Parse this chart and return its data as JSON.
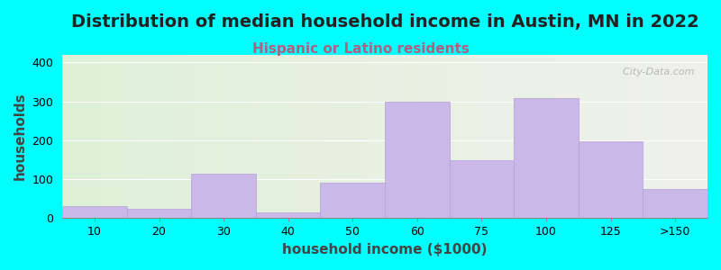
{
  "title": "Distribution of median household income in Austin, MN in 2022",
  "subtitle": "Hispanic or Latino residents",
  "xlabel": "household income ($1000)",
  "ylabel": "households",
  "background_color": "#00FFFF",
  "plot_bg_color_left": "#dff0d8",
  "plot_bg_color_right": "#f0f0ec",
  "bar_color": "#c9b8e8",
  "bar_edge_color": "#b8a8d8",
  "bin_labels": [
    "10",
    "20",
    "30",
    "40",
    "50",
    "60",
    "75",
    "100",
    "125",
    ">150"
  ],
  "values": [
    30,
    25,
    115,
    15,
    90,
    300,
    148,
    308,
    198,
    75
  ],
  "ylim": [
    0,
    420
  ],
  "yticks": [
    0,
    100,
    200,
    300,
    400
  ],
  "watermark": "  City-Data.com",
  "title_fontsize": 14,
  "subtitle_fontsize": 11,
  "subtitle_color": "#b06080",
  "axis_label_fontsize": 11,
  "tick_fontsize": 9
}
